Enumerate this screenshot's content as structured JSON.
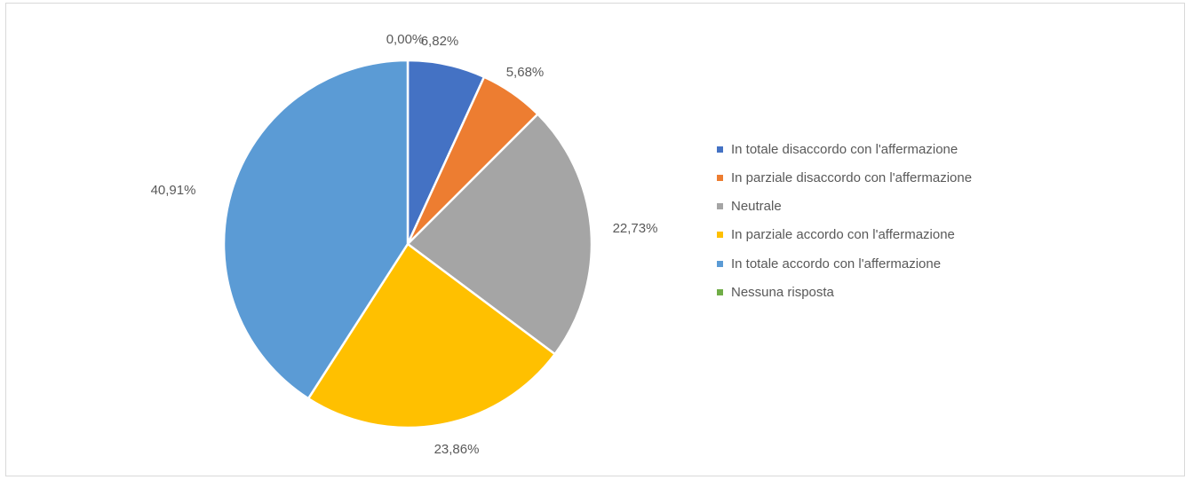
{
  "chart_data": {
    "type": "pie",
    "title": "",
    "slices": [
      {
        "label": "In totale disaccordo con l'affermazione",
        "value": 6.82,
        "value_label": "6,82%",
        "color": "#4472c4"
      },
      {
        "label": "In parziale disaccordo con l'affermazione",
        "value": 5.68,
        "value_label": "5,68%",
        "color": "#ed7d31"
      },
      {
        "label": "Neutrale",
        "value": 22.73,
        "value_label": "22,73%",
        "color": "#a5a5a5"
      },
      {
        "label": "In parziale accordo con l'affermazione",
        "value": 23.86,
        "value_label": "23,86%",
        "color": "#ffc000"
      },
      {
        "label": "In totale accordo con l'affermazione",
        "value": 40.91,
        "value_label": "40,91%",
        "color": "#5b9bd5"
      },
      {
        "label": "Nessuna risposta",
        "value": 0.0,
        "value_label": "0,00%",
        "color": "#70ad47"
      }
    ],
    "legend_position": "right"
  }
}
